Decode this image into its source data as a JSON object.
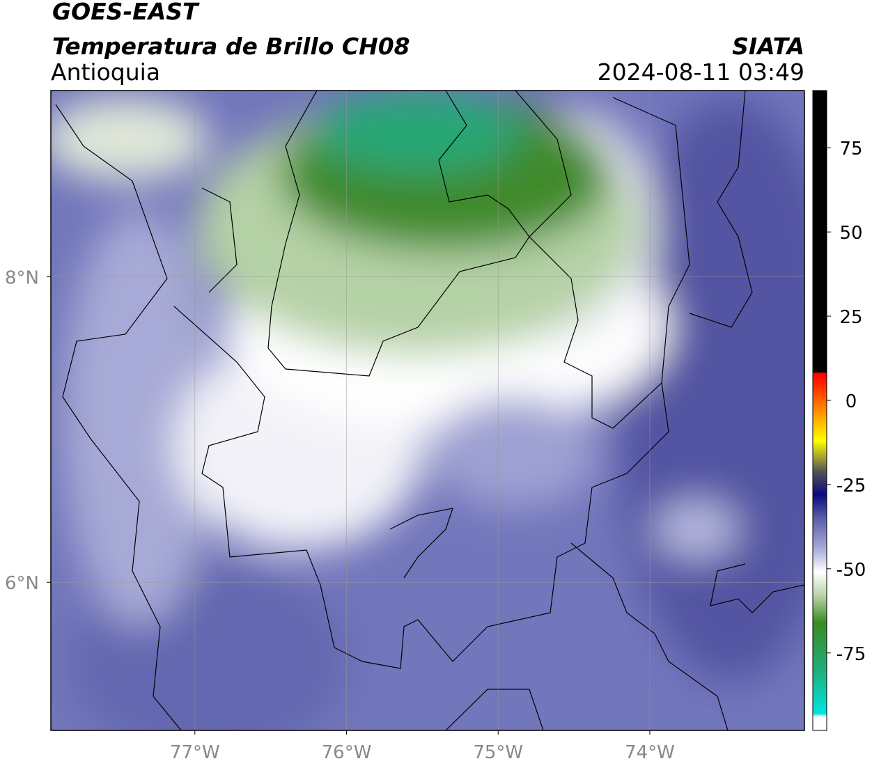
{
  "header": {
    "title": "GOES-EAST",
    "subtitle": "Temperatura de Brillo CH08",
    "region": "Antioquia",
    "source": "SIATA",
    "timestamp": "2024-08-11 03:49"
  },
  "map": {
    "xlim": [
      -77.95,
      -72.98
    ],
    "ylim": [
      5.03,
      9.22
    ],
    "xticks": [
      {
        "value": -77,
        "label": "77°W"
      },
      {
        "value": -76,
        "label": "76°W"
      },
      {
        "value": -75,
        "label": "75°W"
      },
      {
        "value": -74,
        "label": "74°W"
      }
    ],
    "yticks": [
      {
        "value": 6,
        "label": "6°N"
      },
      {
        "value": 8,
        "label": "8°N"
      }
    ],
    "grid": true
  },
  "colorbar": {
    "clim": [
      -98,
      92
    ],
    "ticks": [
      -75,
      -50,
      -25,
      0,
      25,
      50,
      75
    ],
    "colormap": [
      {
        "value": -98,
        "color": "#ffffff"
      },
      {
        "value": -94,
        "color": "#ffffff"
      },
      {
        "value": -93,
        "color": "#00e5e0"
      },
      {
        "value": -80,
        "color": "#1fae7a"
      },
      {
        "value": -66,
        "color": "#3a8a22"
      },
      {
        "value": -58,
        "color": "#b8d4a8"
      },
      {
        "value": -51,
        "color": "#ffffff"
      },
      {
        "value": -44,
        "color": "#a8abd8"
      },
      {
        "value": -35,
        "color": "#5a5eab"
      },
      {
        "value": -28,
        "color": "#0a0a80"
      },
      {
        "value": -21,
        "color": "#555555"
      },
      {
        "value": -12,
        "color": "#ffff00"
      },
      {
        "value": -4,
        "color": "#ff9900"
      },
      {
        "value": 5,
        "color": "#ff2200"
      },
      {
        "value": 8,
        "color": "#ff0000"
      },
      {
        "value": 8.5,
        "color": "#000000"
      },
      {
        "value": 92,
        "color": "#000000"
      }
    ]
  }
}
